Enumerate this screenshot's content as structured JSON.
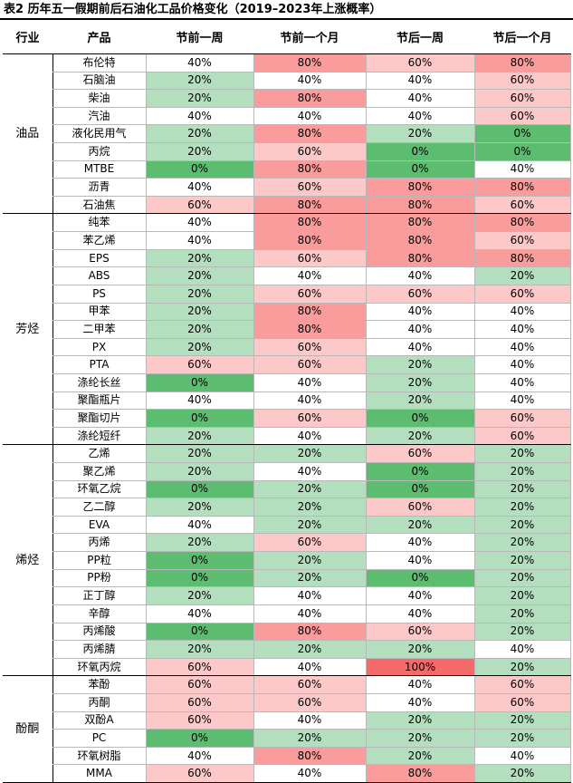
{
  "title": "表2 历年五一假期前后石油化工品价格变化（2019–2023年上涨概率）",
  "headers": [
    "行业",
    "产品",
    "节前一周",
    "节前一个月",
    "节后一周",
    "节后一个月"
  ],
  "groups": [
    {
      "industry": "油品",
      "rows": [
        {
          "product": "布伦特",
          "values": [
            "40%",
            "80%",
            "60%",
            "80%"
          ]
        },
        {
          "product": "石脑油",
          "values": [
            "20%",
            "40%",
            "40%",
            "60%"
          ]
        },
        {
          "product": "柴油",
          "values": [
            "20%",
            "80%",
            "40%",
            "60%"
          ]
        },
        {
          "product": "汽油",
          "values": [
            "40%",
            "40%",
            "40%",
            "60%"
          ]
        },
        {
          "product": "液化民用气",
          "values": [
            "20%",
            "80%",
            "20%",
            "0%"
          ]
        },
        {
          "product": "丙烷",
          "values": [
            "20%",
            "60%",
            "0%",
            "0%"
          ]
        },
        {
          "product": "MTBE",
          "values": [
            "0%",
            "80%",
            "0%",
            "40%"
          ]
        },
        {
          "product": "沥青",
          "values": [
            "40%",
            "60%",
            "80%",
            "80%"
          ]
        },
        {
          "product": "石油焦",
          "values": [
            "60%",
            "80%",
            "80%",
            "60%"
          ]
        }
      ]
    },
    {
      "industry": "芳烃",
      "rows": [
        {
          "product": "纯苯",
          "values": [
            "40%",
            "80%",
            "80%",
            "80%"
          ]
        },
        {
          "product": "苯乙烯",
          "values": [
            "40%",
            "80%",
            "80%",
            "60%"
          ]
        },
        {
          "product": "EPS",
          "values": [
            "20%",
            "60%",
            "80%",
            "80%"
          ]
        },
        {
          "product": "ABS",
          "values": [
            "20%",
            "40%",
            "40%",
            "20%"
          ]
        },
        {
          "product": "PS",
          "values": [
            "20%",
            "60%",
            "60%",
            "60%"
          ]
        },
        {
          "product": "甲苯",
          "values": [
            "20%",
            "80%",
            "40%",
            "40%"
          ]
        },
        {
          "product": "二甲苯",
          "values": [
            "20%",
            "80%",
            "40%",
            "40%"
          ]
        },
        {
          "product": "PX",
          "values": [
            "20%",
            "60%",
            "40%",
            "40%"
          ]
        },
        {
          "product": "PTA",
          "values": [
            "60%",
            "60%",
            "20%",
            "40%"
          ]
        },
        {
          "product": "涤纶长丝",
          "values": [
            "0%",
            "40%",
            "20%",
            "40%"
          ]
        },
        {
          "product": "聚酯瓶片",
          "values": [
            "40%",
            "40%",
            "20%",
            "40%"
          ]
        },
        {
          "product": "聚酯切片",
          "values": [
            "0%",
            "60%",
            "0%",
            "60%"
          ]
        },
        {
          "product": "涤纶短纤",
          "values": [
            "20%",
            "40%",
            "20%",
            "60%"
          ]
        }
      ]
    },
    {
      "industry": "烯烃",
      "rows": [
        {
          "product": "乙烯",
          "values": [
            "20%",
            "20%",
            "60%",
            "20%"
          ]
        },
        {
          "product": "聚乙烯",
          "values": [
            "20%",
            "40%",
            "0%",
            "20%"
          ]
        },
        {
          "product": "环氧乙烷",
          "values": [
            "0%",
            "20%",
            "0%",
            "20%"
          ]
        },
        {
          "product": "乙二醇",
          "values": [
            "20%",
            "20%",
            "60%",
            "20%"
          ]
        },
        {
          "product": "EVA",
          "values": [
            "40%",
            "20%",
            "20%",
            "20%"
          ]
        },
        {
          "product": "丙烯",
          "values": [
            "20%",
            "60%",
            "40%",
            "20%"
          ]
        },
        {
          "product": "PP粒",
          "values": [
            "0%",
            "20%",
            "40%",
            "20%"
          ]
        },
        {
          "product": "PP粉",
          "values": [
            "0%",
            "20%",
            "0%",
            "20%"
          ]
        },
        {
          "product": "正丁醇",
          "values": [
            "20%",
            "40%",
            "40%",
            "20%"
          ]
        },
        {
          "product": "辛醇",
          "values": [
            "40%",
            "40%",
            "40%",
            "20%"
          ]
        },
        {
          "product": "丙烯酸",
          "values": [
            "0%",
            "80%",
            "60%",
            "20%"
          ]
        },
        {
          "product": "丙烯腈",
          "values": [
            "20%",
            "20%",
            "20%",
            "40%"
          ]
        },
        {
          "product": "环氧丙烷",
          "values": [
            "60%",
            "40%",
            "100%",
            "20%"
          ]
        }
      ]
    },
    {
      "industry": "酚酮",
      "rows": [
        {
          "product": "苯酚",
          "values": [
            "60%",
            "60%",
            "40%",
            "60%"
          ]
        },
        {
          "product": "丙酮",
          "values": [
            "60%",
            "60%",
            "40%",
            "60%"
          ]
        },
        {
          "product": "双酚A",
          "values": [
            "60%",
            "40%",
            "20%",
            "20%"
          ]
        },
        {
          "product": "PC",
          "values": [
            "0%",
            "20%",
            "20%",
            "20%"
          ]
        },
        {
          "product": "环氧树脂",
          "values": [
            "40%",
            "80%",
            "20%",
            "40%"
          ]
        },
        {
          "product": "MMA",
          "values": [
            "60%",
            "40%",
            "80%",
            "20%"
          ]
        }
      ]
    }
  ]
}
